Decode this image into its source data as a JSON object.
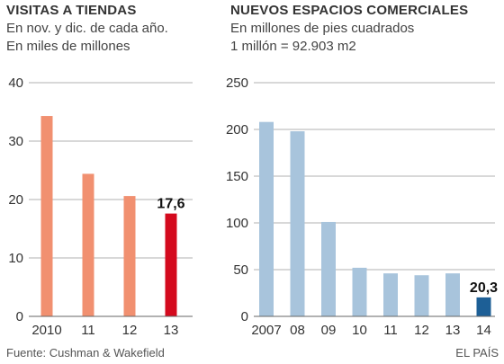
{
  "chart_data": [
    {
      "type": "bar",
      "title": "VISITAS A TIENDAS",
      "subtitle_lines": [
        "En nov. y dic. de cada año.",
        "En miles de millones"
      ],
      "categories": [
        "2010",
        "11",
        "12",
        "13"
      ],
      "values": [
        34.3,
        24.4,
        20.6,
        17.6
      ],
      "ylim": [
        0,
        40
      ],
      "yticks": [
        0,
        10,
        20,
        30,
        40
      ],
      "highlight_index": 3,
      "highlight_label": "17,6",
      "colors": {
        "bar": "#f19070",
        "highlight": "#d40a1e"
      },
      "grid": true
    },
    {
      "type": "bar",
      "title": "NUEVOS ESPACIOS COMERCIALES",
      "subtitle_lines": [
        "En millones de pies cuadrados",
        "1 millón = 92.903 m2"
      ],
      "categories": [
        "2007",
        "08",
        "09",
        "10",
        "11",
        "12",
        "13",
        "14"
      ],
      "values": [
        208,
        198,
        101,
        52,
        46,
        44,
        46,
        20.3
      ],
      "ylim": [
        0,
        250
      ],
      "yticks": [
        0,
        50,
        100,
        150,
        200,
        250
      ],
      "highlight_index": 7,
      "highlight_label": "20,3",
      "colors": {
        "bar": "#a8c4dc",
        "highlight": "#1d5f96"
      },
      "grid": true
    }
  ],
  "footer": {
    "source": "Fuente: Cushman & Wakefield",
    "brand": "EL PAÍS"
  },
  "colors": {
    "grid": "#999999",
    "axis": "#666666"
  }
}
